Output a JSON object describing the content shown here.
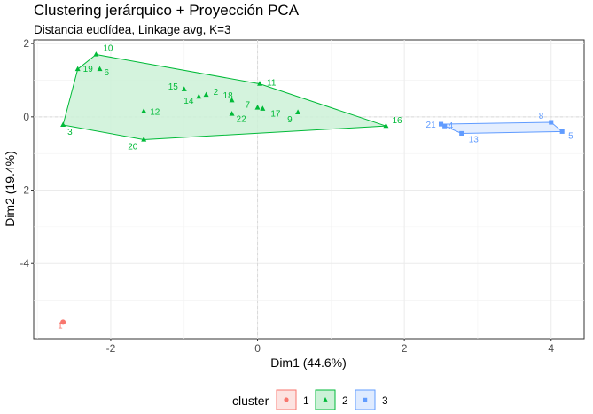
{
  "chart_data": {
    "type": "scatter",
    "title": "Clustering jerárquico + Proyección PCA",
    "subtitle": "Distancia euclídea, Linkage avg, K=3",
    "xlabel": "Dim1 (44.6%)",
    "ylabel": "Dim2 (19.4%)",
    "xlim": [
      -3.05,
      4.45
    ],
    "ylim": [
      -6.05,
      2.1
    ],
    "xticks": [
      -2,
      0,
      2,
      4
    ],
    "yticks": [
      -4,
      -2,
      0,
      2
    ],
    "xtick_labels": [
      "-2",
      "0",
      "2",
      "4"
    ],
    "ytick_labels": [
      "-4",
      "-2",
      "0",
      "2"
    ],
    "grid": true,
    "legend": {
      "title": "cluster",
      "placement": "bottom",
      "entries": [
        {
          "label": "1",
          "color": "#F8766D",
          "fill": "#FCE3E1",
          "marker": "circle"
        },
        {
          "label": "2",
          "color": "#00BA38",
          "fill": "#CCF1D7",
          "marker": "triangle"
        },
        {
          "label": "3",
          "color": "#619CFF",
          "fill": "#DFEBFF",
          "marker": "square"
        }
      ]
    },
    "series": [
      {
        "cluster": "1",
        "points": [
          {
            "label": "1",
            "x": -2.65,
            "y": -5.6
          }
        ],
        "hull": [
          "1"
        ]
      },
      {
        "cluster": "2",
        "points": [
          {
            "label": "10",
            "x": -2.2,
            "y": 1.7
          },
          {
            "label": "19",
            "x": -2.45,
            "y": 1.3
          },
          {
            "label": "6",
            "x": -2.15,
            "y": 1.3
          },
          {
            "label": "15",
            "x": -1.0,
            "y": 0.75
          },
          {
            "label": "2",
            "x": -0.7,
            "y": 0.6
          },
          {
            "label": "14",
            "x": -0.8,
            "y": 0.55
          },
          {
            "label": "18",
            "x": -0.35,
            "y": 0.45
          },
          {
            "label": "7",
            "x": 0.0,
            "y": 0.25
          },
          {
            "label": "22",
            "x": -0.35,
            "y": 0.08
          },
          {
            "label": "17",
            "x": 0.07,
            "y": 0.22
          },
          {
            "label": "9",
            "x": 0.55,
            "y": 0.12
          },
          {
            "label": "11",
            "x": 0.03,
            "y": 0.9
          },
          {
            "label": "12",
            "x": -1.55,
            "y": 0.15
          },
          {
            "label": "3",
            "x": -2.65,
            "y": -0.22
          },
          {
            "label": "20",
            "x": -1.55,
            "y": -0.62
          },
          {
            "label": "16",
            "x": 1.75,
            "y": -0.25
          }
        ],
        "hull": [
          "10",
          "11",
          "16",
          "20",
          "3",
          "19"
        ]
      },
      {
        "cluster": "3",
        "points": [
          {
            "label": "21",
            "x": 2.5,
            "y": -0.2
          },
          {
            "label": "4",
            "x": 2.55,
            "y": -0.25
          },
          {
            "label": "13",
            "x": 2.78,
            "y": -0.45
          },
          {
            "label": "8",
            "x": 4.0,
            "y": -0.15
          },
          {
            "label": "5",
            "x": 4.15,
            "y": -0.4
          }
        ],
        "hull": [
          "21",
          "8",
          "5",
          "13",
          "4"
        ]
      }
    ]
  }
}
